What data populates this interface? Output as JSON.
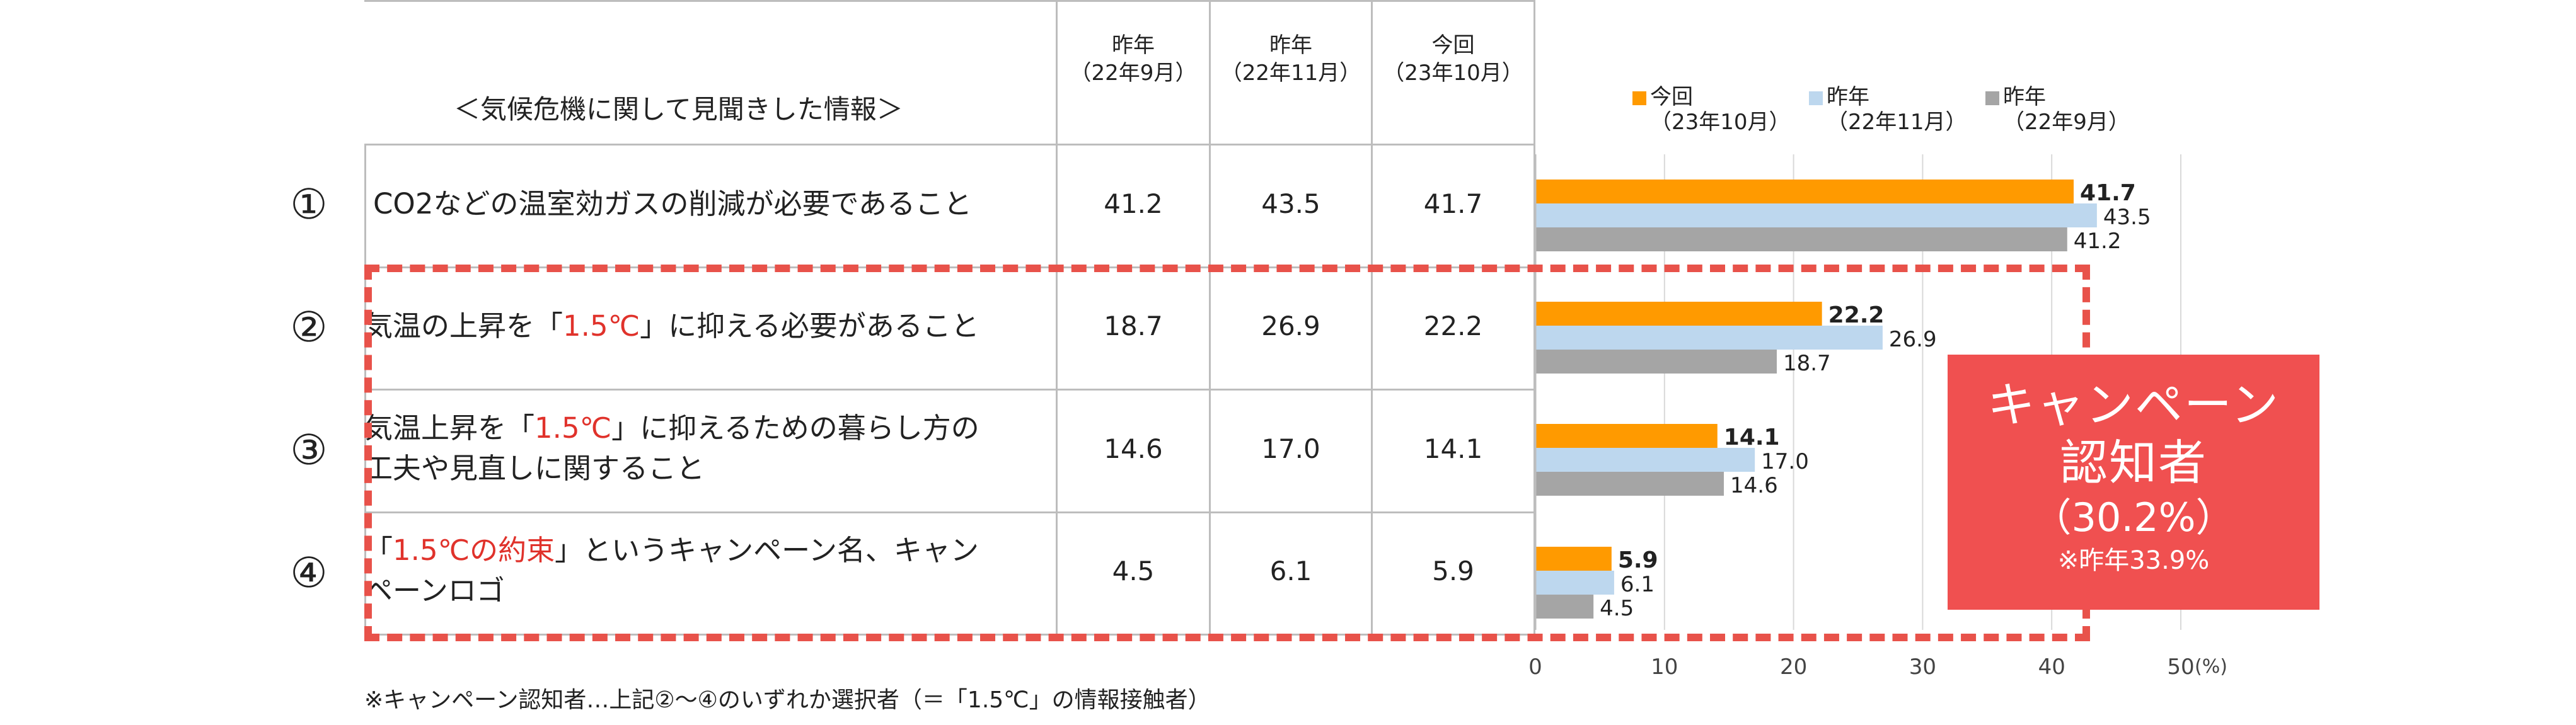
{
  "table": {
    "header_item": "＜気候危機に関して見聞きした情報＞",
    "columns": [
      {
        "line1": "昨年",
        "line2": "（22年9月）"
      },
      {
        "line1": "昨年",
        "line2": "（22年11月）"
      },
      {
        "line1": "今回",
        "line2": "（23年10月）"
      }
    ],
    "rows": [
      {
        "num": "①",
        "text_parts": [
          {
            "t": "CO2などの温室効ガスの削減が必要であること",
            "red": false
          }
        ],
        "text_line2": "",
        "values": [
          "41.2",
          "43.5",
          "41.7"
        ]
      },
      {
        "num": "②",
        "text_parts": [
          {
            "t": "気温の上昇を「",
            "red": false
          },
          {
            "t": "1.5℃",
            "red": true
          },
          {
            "t": "」に抑える必要があること",
            "red": false
          }
        ],
        "text_line2": "",
        "values": [
          "18.7",
          "26.9",
          "22.2"
        ]
      },
      {
        "num": "③",
        "text_parts": [
          {
            "t": "気温上昇を「",
            "red": false
          },
          {
            "t": "1.5℃",
            "red": true
          },
          {
            "t": "」に抑えるための暮らし方の",
            "red": false
          }
        ],
        "text_line2": "工夫や見直しに関すること",
        "values": [
          "14.6",
          "17.0",
          "14.1"
        ]
      },
      {
        "num": "④",
        "text_parts": [
          {
            "t": "「",
            "red": false
          },
          {
            "t": "1.5℃の約束",
            "red": true
          },
          {
            "t": "」というキャンペーン名、キャン",
            "red": false
          }
        ],
        "text_line2": "ペーンロゴ",
        "values": [
          "4.5",
          "6.1",
          "5.9"
        ]
      }
    ]
  },
  "footnote": "※キャンペーン認知者…上記②～④のいずれか選択者（＝「1.5℃」の情報接触者）",
  "campaign_box": {
    "line1": "キャンペーン",
    "line2": "認知者",
    "line3": "（30.2%）",
    "line4": "※昨年33.9%"
  },
  "colors": {
    "current": "#ff9a00",
    "last_nov": "#bdd7ee",
    "last_sep": "#a5a5a5",
    "highlight": "#e8524a"
  },
  "chart_data": {
    "type": "bar",
    "orientation": "horizontal",
    "categories": [
      "①",
      "②",
      "③",
      "④"
    ],
    "series": [
      {
        "name": "今回（23年10月）",
        "values": [
          41.7,
          22.2,
          14.1,
          5.9
        ]
      },
      {
        "name": "昨年（22年11月）",
        "values": [
          43.5,
          26.9,
          17.0,
          6.1
        ]
      },
      {
        "name": "昨年（22年9月）",
        "values": [
          41.2,
          18.7,
          14.6,
          4.5
        ]
      }
    ],
    "legend": [
      {
        "line1": "今回",
        "line2": "（23年10月）"
      },
      {
        "line1": "昨年",
        "line2": "（22年11月）"
      },
      {
        "line1": "昨年",
        "line2": "（22年9月）"
      }
    ],
    "x_ticks": [
      "0",
      "10",
      "20",
      "30",
      "40",
      "50"
    ],
    "x_unit": "(%)",
    "xlim": [
      0,
      50
    ],
    "grid": true,
    "legend_position": "top"
  }
}
